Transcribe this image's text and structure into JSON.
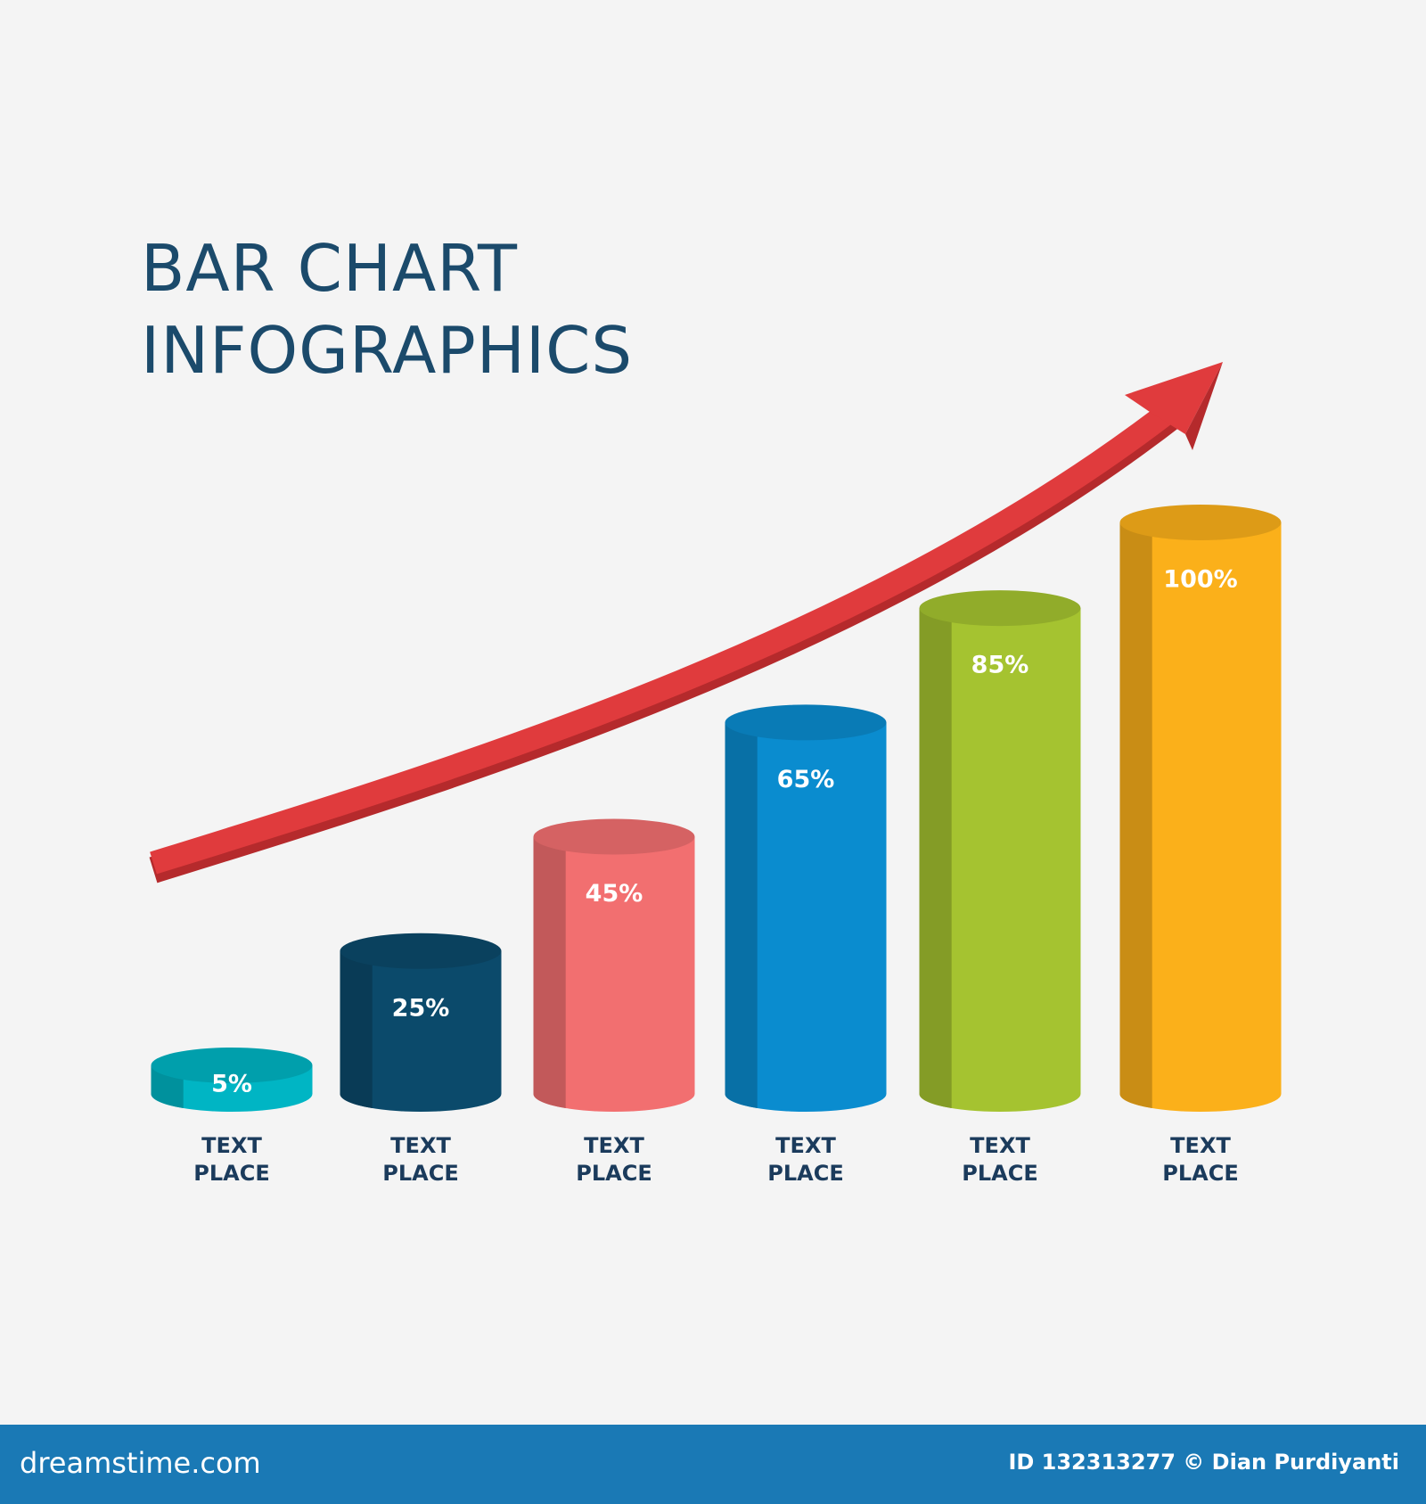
{
  "chart_data": {
    "type": "bar",
    "title": "BAR CHART INFOGRAPHICS",
    "categories": [
      "TEXT PLACE",
      "TEXT PLACE",
      "TEXT PLACE",
      "TEXT PLACE",
      "TEXT PLACE",
      "TEXT PLACE"
    ],
    "values": [
      5,
      25,
      45,
      65,
      85,
      100
    ],
    "value_labels": [
      "5%",
      "25%",
      "45%",
      "65%",
      "85%",
      "100%"
    ],
    "colors": [
      "#00b5c4",
      "#0b4a6b",
      "#f26f70",
      "#0a8ccf",
      "#a5c330",
      "#fbb01a"
    ]
  },
  "footer": {
    "site": "dreamstime.com",
    "credit": "ID 132313277 © Dian Purdiyanti"
  }
}
